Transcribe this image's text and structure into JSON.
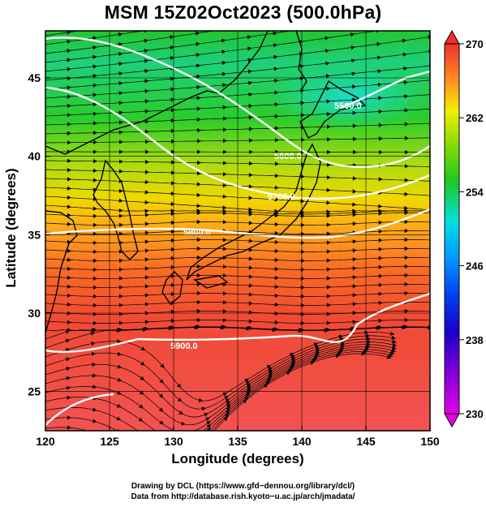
{
  "title": "MSM 15Z02Oct2023 (500.0hPa)",
  "xlabel": "Longitude (degrees)",
  "ylabel": "Latitude  (degrees)",
  "credit_line1": "Drawing by DCL (https://www.gfd−dennou.org/library/dcl/)",
  "credit_line2": "Data from http://database.rish.kyoto−u.ac.jp/arch/jmadata/",
  "map": {
    "lon_range": [
      120,
      150
    ],
    "lat_range": [
      22.5,
      48
    ],
    "lon_ticks": [
      120,
      125,
      130,
      135,
      140,
      145,
      150
    ],
    "lat_ticks": [
      25,
      30,
      35,
      40,
      45
    ],
    "contour_labels": [
      "5500.0",
      "5600.0",
      "5700.0",
      "5800.0",
      "5900.0"
    ]
  },
  "colorbar": {
    "ticks": [
      230,
      238,
      246,
      254,
      262,
      270
    ],
    "colors": [
      "#e400e4",
      "#1a00c8",
      "#0068ff",
      "#00e0e0",
      "#20c820",
      "#f0f000",
      "#ff8a1a",
      "#f03030"
    ]
  },
  "colors": {
    "land_outline": "#000000",
    "contour": "#ffffff",
    "streamline": "#000000"
  }
}
